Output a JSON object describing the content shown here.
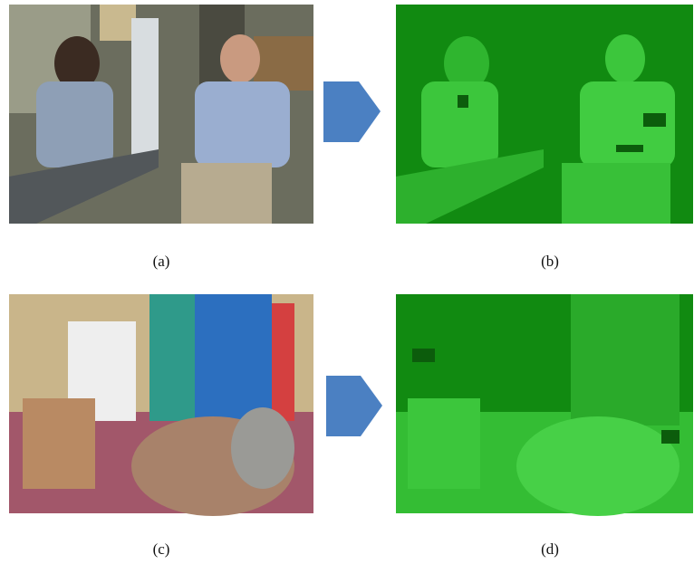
{
  "labels": [
    "(a)",
    "(b)",
    "(c)",
    "(d)"
  ]
}
